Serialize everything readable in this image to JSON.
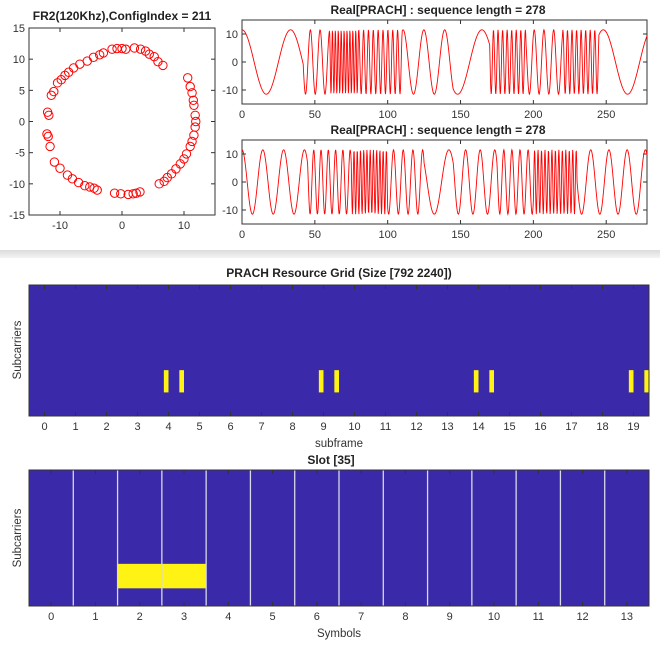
{
  "chart_data": [
    {
      "id": "constellation",
      "type": "scatter",
      "title": "FR2(120Khz),ConfigIndex = 211",
      "xlim": [
        -15,
        15
      ],
      "ylim": [
        -15,
        15
      ],
      "xticks": [
        -10,
        0,
        10
      ],
      "yticks": [
        -15,
        -10,
        -5,
        0,
        5,
        10,
        15
      ],
      "marker": "circle",
      "color": "#ff0000",
      "points": [
        [
          -12.0,
          1.5
        ],
        [
          -11.8,
          1.0
        ],
        [
          -12.1,
          -2.0
        ],
        [
          -11.9,
          -2.4
        ],
        [
          -11.6,
          -4.0
        ],
        [
          -11.4,
          4.2
        ],
        [
          -11.0,
          4.8
        ],
        [
          -10.9,
          -6.5
        ],
        [
          -10.4,
          6.2
        ],
        [
          -10.0,
          -7.5
        ],
        [
          -9.8,
          6.7
        ],
        [
          -9.2,
          7.4
        ],
        [
          -8.8,
          -8.6
        ],
        [
          -8.6,
          7.9
        ],
        [
          -8.0,
          -9.2
        ],
        [
          -7.8,
          8.6
        ],
        [
          -7.0,
          -9.8
        ],
        [
          -6.8,
          9.2
        ],
        [
          -6.0,
          -10.3
        ],
        [
          -5.6,
          9.7
        ],
        [
          -5.2,
          -10.5
        ],
        [
          -4.6,
          10.3
        ],
        [
          -4.5,
          -10.7
        ],
        [
          -4.0,
          -11.0
        ],
        [
          -3.6,
          10.7
        ],
        [
          -3.0,
          11.0
        ],
        [
          -1.6,
          11.6
        ],
        [
          -0.8,
          11.7
        ],
        [
          0.0,
          11.7
        ],
        [
          0.6,
          11.6
        ],
        [
          -1.2,
          -11.5
        ],
        [
          -0.2,
          -11.6
        ],
        [
          1.0,
          -11.7
        ],
        [
          1.8,
          -11.6
        ],
        [
          2.3,
          -11.5
        ],
        [
          2.9,
          -11.3
        ],
        [
          2.0,
          11.8
        ],
        [
          3.0,
          11.6
        ],
        [
          3.8,
          11.3
        ],
        [
          4.4,
          10.8
        ],
        [
          5.2,
          10.4
        ],
        [
          5.8,
          9.6
        ],
        [
          6.6,
          9.0
        ],
        [
          6.0,
          -10.0
        ],
        [
          6.8,
          -9.6
        ],
        [
          7.3,
          -9.0
        ],
        [
          8.0,
          -8.4
        ],
        [
          8.7,
          -7.6
        ],
        [
          9.4,
          -6.8
        ],
        [
          10.0,
          -6.0
        ],
        [
          10.4,
          -5.2
        ],
        [
          11.0,
          -4.0
        ],
        [
          11.3,
          -3.2
        ],
        [
          11.6,
          -2.2
        ],
        [
          11.8,
          -0.9
        ],
        [
          11.9,
          0.0
        ],
        [
          11.8,
          1.0
        ],
        [
          11.6,
          2.6
        ],
        [
          11.5,
          3.4
        ],
        [
          11.3,
          4.6
        ],
        [
          11.0,
          5.6
        ],
        [
          10.6,
          7.0
        ]
      ]
    },
    {
      "id": "real-prach-1",
      "type": "line",
      "title": "Real[PRACH] : sequence length = 278",
      "xlim": [
        0,
        278
      ],
      "ylim": [
        -15,
        15
      ],
      "xticks": [
        0,
        50,
        100,
        150,
        200,
        250
      ],
      "yticks": [
        -10,
        0,
        10
      ],
      "color": "#ff0000",
      "amplitude": 11.5,
      "length": 278,
      "segments": [
        [
          0,
          42,
          0.03
        ],
        [
          42,
          60,
          0.15
        ],
        [
          60,
          80,
          0.5
        ],
        [
          80,
          110,
          0.3
        ],
        [
          110,
          145,
          0.07
        ],
        [
          145,
          170,
          0.03
        ],
        [
          170,
          195,
          0.32
        ],
        [
          195,
          220,
          0.15
        ],
        [
          220,
          245,
          0.32
        ],
        [
          245,
          278,
          0.03
        ]
      ]
    },
    {
      "id": "real-prach-2",
      "type": "line",
      "title": "Real[PRACH] : sequence length = 278",
      "xlim": [
        0,
        278
      ],
      "ylim": [
        -15,
        15
      ],
      "xticks": [
        0,
        50,
        100,
        150,
        200,
        250
      ],
      "yticks": [
        -10,
        0,
        10
      ],
      "color": "#ff0000",
      "amplitude": 11.5,
      "length": 278,
      "segments": [
        [
          0,
          45,
          0.07
        ],
        [
          45,
          75,
          0.2
        ],
        [
          75,
          100,
          0.45
        ],
        [
          100,
          125,
          0.15
        ],
        [
          125,
          145,
          0.05
        ],
        [
          145,
          175,
          0.1
        ],
        [
          175,
          200,
          0.18
        ],
        [
          200,
          230,
          0.42
        ],
        [
          230,
          278,
          0.08
        ]
      ]
    },
    {
      "id": "resource-grid",
      "type": "heatmap",
      "title": "PRACH Resource Grid (Size [792 2240])",
      "xlabel": "subframe",
      "ylabel": "Subcarriers",
      "background_color": "#3a29a8",
      "highlight_color": "#fff314",
      "xlim": [
        -0.5,
        19.5
      ],
      "xticks": [
        0,
        1,
        2,
        3,
        4,
        5,
        6,
        7,
        8,
        9,
        10,
        11,
        12,
        13,
        14,
        15,
        16,
        17,
        18,
        19
      ],
      "band_y": [
        0.65,
        0.82
      ],
      "active_blocks_x": [
        [
          3.85,
          4.0
        ],
        [
          4.35,
          4.5
        ],
        [
          8.85,
          9.0
        ],
        [
          9.35,
          9.5
        ],
        [
          13.85,
          14.0
        ],
        [
          14.35,
          14.5
        ],
        [
          18.85,
          19.0
        ],
        [
          19.35,
          19.5
        ]
      ]
    },
    {
      "id": "slot",
      "type": "heatmap",
      "title": "Slot [35]",
      "xlabel": "Symbols",
      "ylabel": "Subcarriers",
      "background_color": "#3a29a8",
      "highlight_color": "#fff314",
      "xlim": [
        -0.5,
        13.5
      ],
      "xticks": [
        0,
        1,
        2,
        3,
        4,
        5,
        6,
        7,
        8,
        9,
        10,
        11,
        12,
        13
      ],
      "symbol_boundaries": [
        0.5,
        1.5,
        2.5,
        3.5,
        4.5,
        5.5,
        6.5,
        7.5,
        8.5,
        9.5,
        10.5,
        11.5,
        12.5
      ],
      "band_y": [
        0.69,
        0.87
      ],
      "active_blocks_x": [
        [
          1.5,
          3.5
        ]
      ]
    }
  ]
}
